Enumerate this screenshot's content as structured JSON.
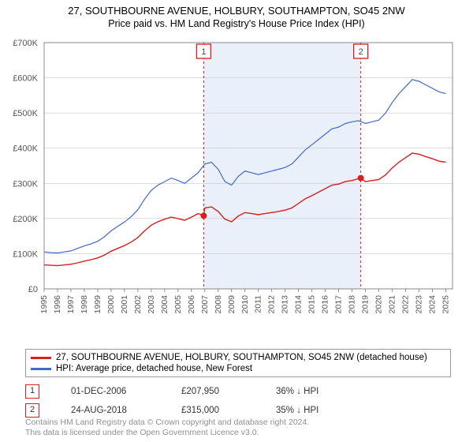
{
  "title": {
    "line1": "27, SOUTHBOURNE AVENUE, HOLBURY, SOUTHAMPTON, SO45 2NW",
    "line2": "Price paid vs. HM Land Registry's House Price Index (HPI)",
    "fontsize_line1": 13,
    "fontsize_line2": 12.5
  },
  "chart": {
    "type": "line",
    "background_color": "#ffffff",
    "grid_color": "#c8c8c8",
    "axis_color": "#666666",
    "x": {
      "min": 1995,
      "max": 2025.5,
      "ticks": [
        1995,
        1996,
        1997,
        1998,
        1999,
        2000,
        2001,
        2002,
        2003,
        2004,
        2005,
        2006,
        2007,
        2008,
        2009,
        2010,
        2011,
        2012,
        2013,
        2014,
        2015,
        2016,
        2017,
        2018,
        2019,
        2020,
        2021,
        2022,
        2023,
        2024,
        2025
      ],
      "tick_fontsize": 10.5,
      "tick_color": "#555"
    },
    "y": {
      "min": 0,
      "max": 700000,
      "ticks": [
        0,
        100000,
        200000,
        300000,
        400000,
        500000,
        600000,
        700000
      ],
      "tick_labels": [
        "£0",
        "£100K",
        "£200K",
        "£300K",
        "£400K",
        "£500K",
        "£600K",
        "£700K"
      ],
      "tick_fontsize": 11,
      "tick_color": "#555"
    },
    "series": [
      {
        "name": "hpi",
        "label": "HPI: Average price, detached house, New Forest",
        "color": "#4169c8",
        "line_width": 1.2,
        "data": [
          [
            1995,
            105000
          ],
          [
            1995.5,
            103000
          ],
          [
            1996,
            102000
          ],
          [
            1996.5,
            105000
          ],
          [
            1997,
            108000
          ],
          [
            1997.5,
            115000
          ],
          [
            1998,
            122000
          ],
          [
            1998.5,
            128000
          ],
          [
            1999,
            135000
          ],
          [
            1999.5,
            148000
          ],
          [
            2000,
            165000
          ],
          [
            2000.5,
            178000
          ],
          [
            2001,
            190000
          ],
          [
            2001.5,
            205000
          ],
          [
            2002,
            225000
          ],
          [
            2002.5,
            255000
          ],
          [
            2003,
            280000
          ],
          [
            2003.5,
            295000
          ],
          [
            2004,
            305000
          ],
          [
            2004.5,
            315000
          ],
          [
            2005,
            308000
          ],
          [
            2005.5,
            300000
          ],
          [
            2006,
            315000
          ],
          [
            2006.5,
            330000
          ],
          [
            2007,
            355000
          ],
          [
            2007.5,
            360000
          ],
          [
            2008,
            340000
          ],
          [
            2008.5,
            305000
          ],
          [
            2009,
            295000
          ],
          [
            2009.5,
            320000
          ],
          [
            2010,
            335000
          ],
          [
            2010.5,
            330000
          ],
          [
            2011,
            325000
          ],
          [
            2011.5,
            330000
          ],
          [
            2012,
            335000
          ],
          [
            2012.5,
            340000
          ],
          [
            2013,
            345000
          ],
          [
            2013.5,
            355000
          ],
          [
            2014,
            375000
          ],
          [
            2014.5,
            395000
          ],
          [
            2015,
            410000
          ],
          [
            2015.5,
            425000
          ],
          [
            2016,
            440000
          ],
          [
            2016.5,
            455000
          ],
          [
            2017,
            460000
          ],
          [
            2017.5,
            470000
          ],
          [
            2018,
            475000
          ],
          [
            2018.5,
            478000
          ],
          [
            2019,
            470000
          ],
          [
            2019.5,
            475000
          ],
          [
            2020,
            480000
          ],
          [
            2020.5,
            500000
          ],
          [
            2021,
            530000
          ],
          [
            2021.5,
            555000
          ],
          [
            2022,
            575000
          ],
          [
            2022.5,
            595000
          ],
          [
            2023,
            590000
          ],
          [
            2023.5,
            580000
          ],
          [
            2024,
            570000
          ],
          [
            2024.5,
            560000
          ],
          [
            2025,
            555000
          ]
        ]
      },
      {
        "name": "property",
        "label": "27, SOUTHBOURNE AVENUE, HOLBURY, SOUTHAMPTON, SO45 2NW (detached house)",
        "color": "#d81e1e",
        "line_width": 1.4,
        "data": [
          [
            1995,
            68000
          ],
          [
            1995.5,
            67000
          ],
          [
            1996,
            66000
          ],
          [
            1996.5,
            68000
          ],
          [
            1997,
            70000
          ],
          [
            1997.5,
            74000
          ],
          [
            1998,
            79000
          ],
          [
            1998.5,
            83000
          ],
          [
            1999,
            88000
          ],
          [
            1999.5,
            96000
          ],
          [
            2000,
            107000
          ],
          [
            2000.5,
            115000
          ],
          [
            2001,
            123000
          ],
          [
            2001.5,
            133000
          ],
          [
            2002,
            146000
          ],
          [
            2002.5,
            165000
          ],
          [
            2003,
            181000
          ],
          [
            2003.5,
            191000
          ],
          [
            2004,
            198000
          ],
          [
            2004.5,
            204000
          ],
          [
            2005,
            200000
          ],
          [
            2005.5,
            195000
          ],
          [
            2006,
            204000
          ],
          [
            2006.5,
            214000
          ],
          [
            2006.92,
            207950
          ],
          [
            2007,
            230000
          ],
          [
            2007.5,
            233000
          ],
          [
            2008,
            220000
          ],
          [
            2008.5,
            198000
          ],
          [
            2009,
            191000
          ],
          [
            2009.5,
            207000
          ],
          [
            2010,
            217000
          ],
          [
            2010.5,
            214000
          ],
          [
            2011,
            211000
          ],
          [
            2011.5,
            214000
          ],
          [
            2012,
            217000
          ],
          [
            2012.5,
            220000
          ],
          [
            2013,
            224000
          ],
          [
            2013.5,
            230000
          ],
          [
            2014,
            243000
          ],
          [
            2014.5,
            256000
          ],
          [
            2015,
            265000
          ],
          [
            2015.5,
            275000
          ],
          [
            2016,
            285000
          ],
          [
            2016.5,
            295000
          ],
          [
            2017,
            298000
          ],
          [
            2017.5,
            305000
          ],
          [
            2018,
            308000
          ],
          [
            2018.65,
            315000
          ],
          [
            2019,
            305000
          ],
          [
            2019.5,
            308000
          ],
          [
            2020,
            311000
          ],
          [
            2020.5,
            324000
          ],
          [
            2021,
            344000
          ],
          [
            2021.5,
            360000
          ],
          [
            2022,
            373000
          ],
          [
            2022.5,
            386000
          ],
          [
            2023,
            383000
          ],
          [
            2023.5,
            376000
          ],
          [
            2024,
            370000
          ],
          [
            2024.5,
            363000
          ],
          [
            2025,
            360000
          ]
        ]
      }
    ],
    "sale_markers": [
      {
        "n": "1",
        "x": 2006.92,
        "y": 207950,
        "line_color": "#d81e1e",
        "badge_border": "#d81e1e"
      },
      {
        "n": "2",
        "x": 2018.65,
        "y": 315000,
        "line_color": "#d81e1e",
        "badge_border": "#d81e1e"
      }
    ],
    "sale_band_fill": "#eaf0fa",
    "plot_border_color": "#888888"
  },
  "legend": {
    "items": [
      {
        "color": "#d81e1e",
        "label": "27, SOUTHBOURNE AVENUE, HOLBURY, SOUTHAMPTON, SO45 2NW (detached house)"
      },
      {
        "color": "#4169c8",
        "label": "HPI: Average price, detached house, New Forest"
      }
    ]
  },
  "sales": [
    {
      "n": "1",
      "date": "01-DEC-2006",
      "price": "£207,950",
      "delta": "36% ↓ HPI",
      "border": "#d81e1e"
    },
    {
      "n": "2",
      "date": "24-AUG-2018",
      "price": "£315,000",
      "delta": "35% ↓ HPI",
      "border": "#d81e1e"
    }
  ],
  "footer": {
    "line1": "Contains HM Land Registry data © Crown copyright and database right 2024.",
    "line2": "This data is licensed under the Open Government Licence v3.0."
  }
}
